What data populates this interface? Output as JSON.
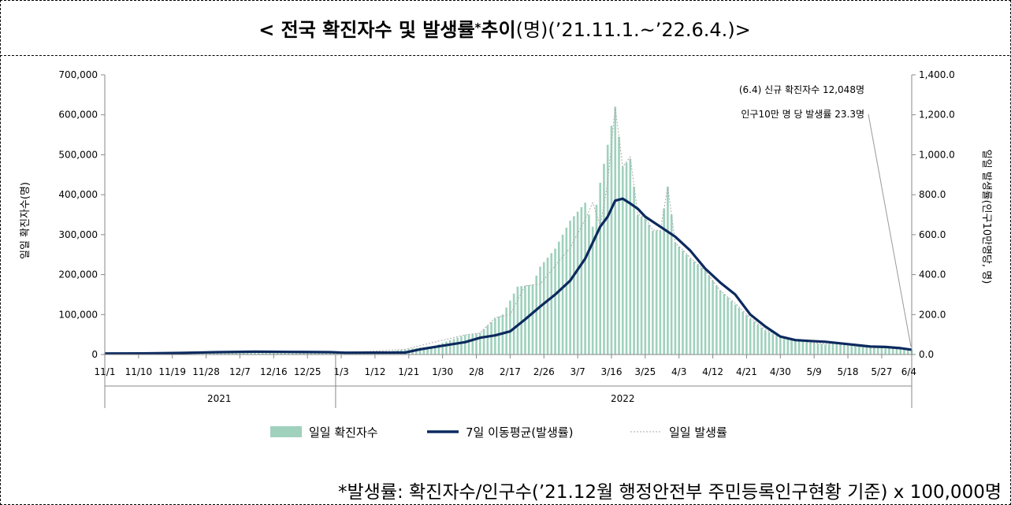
{
  "header": {
    "title_main": "< 전국 확진자수 및 발생률",
    "title_star": "*",
    "title_bold2": " 추이",
    "title_rest": "(명)(’21.11.1.~’22.6.4.)>"
  },
  "footnote": "*발생률: 확진자수/인구수(’21.12월 행정안전부 주민등록인구현황 기준) x 100,000명",
  "colors": {
    "bar": "#9fd1bd",
    "ma": "#0c2a5e",
    "daily_rate": "#aaaaaa"
  },
  "chart_data": {
    "type": "bar+line",
    "x_labels": [
      "11/1",
      "11/10",
      "11/19",
      "11/28",
      "12/7",
      "12/16",
      "12/25",
      "1/3",
      "1/12",
      "1/21",
      "1/30",
      "2/8",
      "2/17",
      "2/26",
      "3/7",
      "3/16",
      "3/25",
      "4/3",
      "4/12",
      "4/21",
      "4/30",
      "5/9",
      "5/18",
      "5/27",
      "6/4"
    ],
    "x_label_day_index": [
      0,
      9,
      18,
      27,
      36,
      45,
      54,
      63,
      72,
      81,
      90,
      99,
      108,
      117,
      126,
      135,
      144,
      153,
      162,
      171,
      180,
      189,
      198,
      207,
      215
    ],
    "year_labels": [
      {
        "label": "2021",
        "start_day": 0,
        "end_day": 61
      },
      {
        "label": "2022",
        "start_day": 61,
        "end_day": 215
      }
    ],
    "ylabel": "일일 확진자수(명)",
    "y2label": "일일 발생률(인구10만명당, 명)",
    "ylim": [
      0,
      700000
    ],
    "y_ticks": [
      "0",
      "100,000",
      "200,000",
      "300,000",
      "400,000",
      "500,000",
      "600,000",
      "700,000"
    ],
    "y2lim": [
      0,
      1400
    ],
    "y2_ticks": [
      "0.0",
      "200.0",
      "400.0",
      "600.0",
      "800.0",
      "1,000.0",
      "1,200.0",
      "1,400.0"
    ],
    "annotation": {
      "line1": "(6.4) 신규 확진자수 12,048명",
      "line2": "인구10만 명 당 발생률 23.3명",
      "day_index": 215,
      "value": 12048
    },
    "legend": [
      "일일 확진자수",
      "7일 이동평균(발생률)",
      "일일 발생률"
    ],
    "series": [
      {
        "name": "일일 확진자수",
        "kind": "bar",
        "days": [
          0,
          5,
          10,
          15,
          20,
          25,
          30,
          35,
          40,
          45,
          50,
          55,
          60,
          64,
          70,
          76,
          80,
          84,
          88,
          92,
          96,
          100,
          104,
          106,
          110,
          114,
          116,
          120,
          124,
          128,
          130,
          132,
          136,
          138,
          140,
          142,
          144,
          146,
          148,
          150,
          152,
          154,
          156,
          160,
          164,
          168,
          172,
          176,
          180,
          184,
          188,
          192,
          196,
          200,
          204,
          208,
          212,
          215
        ],
        "values": [
          1700,
          2500,
          3200,
          3300,
          5000,
          7000,
          7800,
          6000,
          5500,
          6200,
          5800,
          4000,
          4400,
          4200,
          4300,
          7500,
          13000,
          17500,
          22000,
          36000,
          49000,
          54000,
          90000,
          100000,
          170000,
          175000,
          220000,
          265000,
          335000,
          380000,
          320000,
          430000,
          620000,
          470000,
          490000,
          350000,
          340000,
          310000,
          310000,
          420000,
          280000,
          260000,
          240000,
          210000,
          160000,
          125000,
          90000,
          60000,
          45000,
          35000,
          30000,
          25000,
          28000,
          20000,
          18000,
          17000,
          14000,
          12048
        ]
      },
      {
        "name": "7일 이동평균(발생률)",
        "kind": "line",
        "days": [
          0,
          10,
          20,
          30,
          40,
          50,
          60,
          64,
          80,
          84,
          90,
          96,
          100,
          104,
          108,
          112,
          116,
          120,
          124,
          128,
          132,
          134,
          136,
          138,
          140,
          142,
          144,
          148,
          152,
          156,
          160,
          164,
          168,
          172,
          176,
          180,
          184,
          188,
          192,
          196,
          200,
          204,
          208,
          212,
          215
        ],
        "values": [
          2500,
          2800,
          4000,
          6000,
          7000,
          6500,
          6000,
          4500,
          5000,
          13000,
          22000,
          31000,
          42000,
          48000,
          58000,
          88000,
          120000,
          150000,
          185000,
          240000,
          320000,
          345000,
          385000,
          390000,
          378000,
          365000,
          345000,
          320000,
          295000,
          260000,
          215000,
          180000,
          150000,
          100000,
          70000,
          45000,
          36000,
          34000,
          32000,
          28000,
          24000,
          20000,
          19000,
          16000,
          12048
        ]
      },
      {
        "name": "일일 발생률",
        "kind": "line",
        "days": [
          0,
          10,
          20,
          30,
          40,
          50,
          60,
          64,
          80,
          90,
          96,
          100,
          104,
          108,
          112,
          116,
          120,
          124,
          128,
          130,
          132,
          134,
          136,
          138,
          140,
          142,
          144,
          146,
          148,
          150,
          152,
          154,
          156,
          160,
          164,
          168,
          172,
          176,
          180,
          184,
          188,
          192,
          196,
          200,
          204,
          208,
          212,
          215
        ],
        "values": [
          3000,
          3500,
          5000,
          7500,
          6000,
          6000,
          4000,
          4400,
          13000,
          36000,
          49000,
          54000,
          92000,
          100000,
          172000,
          176000,
          222000,
          267000,
          338000,
          380000,
          322000,
          430000,
          620000,
          470000,
          495000,
          352000,
          342000,
          312000,
          310000,
          420000,
          280000,
          262000,
          242000,
          210000,
          160000,
          128000,
          92000,
          62000,
          46000,
          36000,
          30000,
          26000,
          28000,
          20000,
          18000,
          17000,
          14000,
          12048
        ]
      }
    ]
  }
}
